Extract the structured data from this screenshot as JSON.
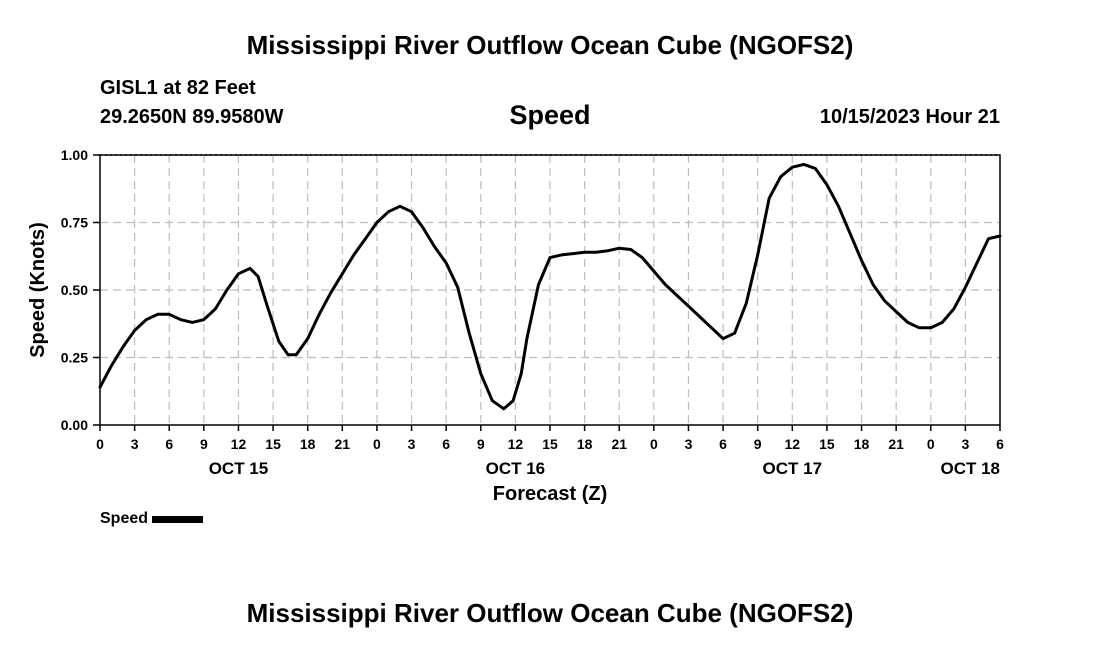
{
  "header": {
    "title": "Mississippi River Outflow Ocean Cube (NGOFS2)",
    "station": "GISL1 at 82 Feet",
    "coordinates": "29.2650N  89.9580W",
    "datetime": "10/15/2023 Hour 21"
  },
  "footer": {
    "title": "Mississippi River Outflow Ocean Cube (NGOFS2)"
  },
  "legend": {
    "label": "Speed"
  },
  "chart_data": {
    "type": "line",
    "title": "Speed",
    "xlabel": "Forecast (Z)",
    "ylabel": "Speed (Knots)",
    "ylim": [
      0,
      1
    ],
    "xlim": [
      0,
      78
    ],
    "x_unit": "hours from OCT 15 00Z",
    "grid": true,
    "y_ticks": [
      "0.00",
      "0.25",
      "0.50",
      "0.75",
      "1.00"
    ],
    "x_ticks": [
      {
        "h": 0,
        "label": "0"
      },
      {
        "h": 3,
        "label": "3"
      },
      {
        "h": 6,
        "label": "6"
      },
      {
        "h": 9,
        "label": "9"
      },
      {
        "h": 12,
        "label": "12"
      },
      {
        "h": 15,
        "label": "15"
      },
      {
        "h": 18,
        "label": "18"
      },
      {
        "h": 21,
        "label": "21"
      },
      {
        "h": 24,
        "label": "0"
      },
      {
        "h": 27,
        "label": "3"
      },
      {
        "h": 30,
        "label": "6"
      },
      {
        "h": 33,
        "label": "9"
      },
      {
        "h": 36,
        "label": "12"
      },
      {
        "h": 39,
        "label": "15"
      },
      {
        "h": 42,
        "label": "18"
      },
      {
        "h": 45,
        "label": "21"
      },
      {
        "h": 48,
        "label": "0"
      },
      {
        "h": 51,
        "label": "3"
      },
      {
        "h": 54,
        "label": "6"
      },
      {
        "h": 57,
        "label": "9"
      },
      {
        "h": 60,
        "label": "12"
      },
      {
        "h": 63,
        "label": "15"
      },
      {
        "h": 66,
        "label": "18"
      },
      {
        "h": 69,
        "label": "21"
      },
      {
        "h": 72,
        "label": "0"
      },
      {
        "h": 75,
        "label": "3"
      },
      {
        "h": 78,
        "label": "6"
      }
    ],
    "day_labels": [
      {
        "h": 12,
        "label": "OCT 15"
      },
      {
        "h": 36,
        "label": "OCT 16"
      },
      {
        "h": 60,
        "label": "OCT 17"
      },
      {
        "h": 78,
        "label": "OCT 18"
      }
    ],
    "series": [
      {
        "name": "Speed",
        "x": [
          0,
          1,
          2,
          3,
          4,
          5,
          6,
          7,
          8,
          9,
          10,
          11,
          12,
          13,
          13.7,
          14.5,
          15.5,
          16.3,
          17,
          18,
          19,
          20,
          21,
          22,
          23,
          24,
          25,
          26,
          27,
          28,
          29,
          30,
          31,
          32,
          33,
          34,
          35,
          35.8,
          36.5,
          37,
          38,
          39,
          40,
          41,
          42,
          43,
          44,
          45,
          46,
          47,
          48,
          49,
          50,
          51,
          52,
          53,
          54,
          55,
          56,
          57,
          58,
          59,
          60,
          61,
          62,
          63,
          64,
          65,
          66,
          67,
          68,
          69,
          70,
          71,
          72,
          73,
          74,
          75,
          76,
          77,
          78
        ],
        "values": [
          0.14,
          0.22,
          0.29,
          0.35,
          0.39,
          0.41,
          0.41,
          0.39,
          0.38,
          0.39,
          0.43,
          0.5,
          0.56,
          0.58,
          0.55,
          0.44,
          0.31,
          0.26,
          0.26,
          0.32,
          0.41,
          0.49,
          0.56,
          0.63,
          0.69,
          0.75,
          0.79,
          0.81,
          0.79,
          0.73,
          0.66,
          0.6,
          0.51,
          0.34,
          0.19,
          0.09,
          0.06,
          0.09,
          0.19,
          0.32,
          0.52,
          0.62,
          0.63,
          0.635,
          0.64,
          0.64,
          0.645,
          0.655,
          0.65,
          0.62,
          0.57,
          0.52,
          0.48,
          0.44,
          0.4,
          0.36,
          0.32,
          0.34,
          0.45,
          0.63,
          0.84,
          0.92,
          0.955,
          0.965,
          0.95,
          0.89,
          0.81,
          0.71,
          0.61,
          0.52,
          0.46,
          0.42,
          0.38,
          0.36,
          0.36,
          0.38,
          0.43,
          0.51,
          0.6,
          0.69,
          0.7
        ]
      }
    ]
  }
}
